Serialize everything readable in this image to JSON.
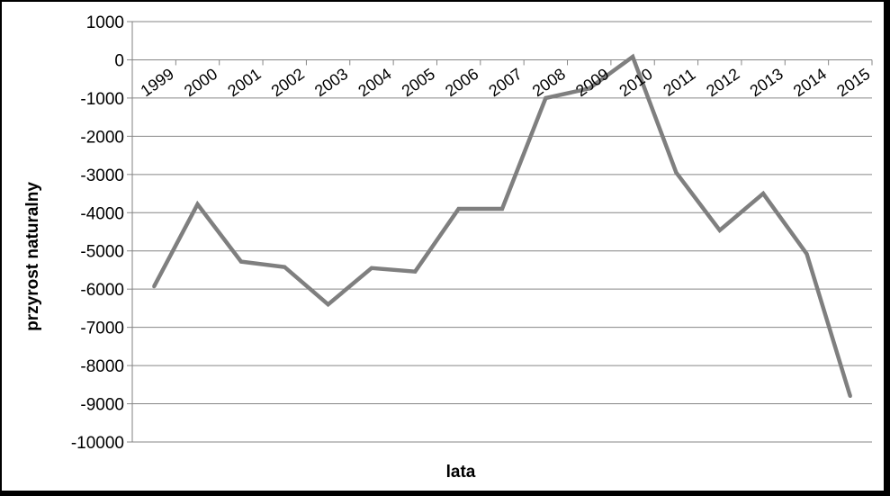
{
  "chart_data": {
    "type": "line",
    "title": "",
    "xlabel": "lata",
    "ylabel": "przyrost naturalny",
    "categories": [
      "1999",
      "2000",
      "2001",
      "2002",
      "2003",
      "2004",
      "2005",
      "2006",
      "2007",
      "2008",
      "2009",
      "2010",
      "2011",
      "2012",
      "2013",
      "2014",
      "2015"
    ],
    "series": [
      {
        "values": [
          -5930,
          -3780,
          -5280,
          -5420,
          -6400,
          -5450,
          -5540,
          -3900,
          -3900,
          -1000,
          -750,
          80,
          -2950,
          -4460,
          -3500,
          -5080,
          -8800
        ],
        "color": "#7f7f7f"
      }
    ],
    "ylim": [
      -10000,
      1000
    ],
    "yticks": [
      1000,
      0,
      -1000,
      -2000,
      -3000,
      -4000,
      -5000,
      -6000,
      -7000,
      -8000,
      -9000,
      -10000
    ],
    "grid": true,
    "legend": "none"
  }
}
